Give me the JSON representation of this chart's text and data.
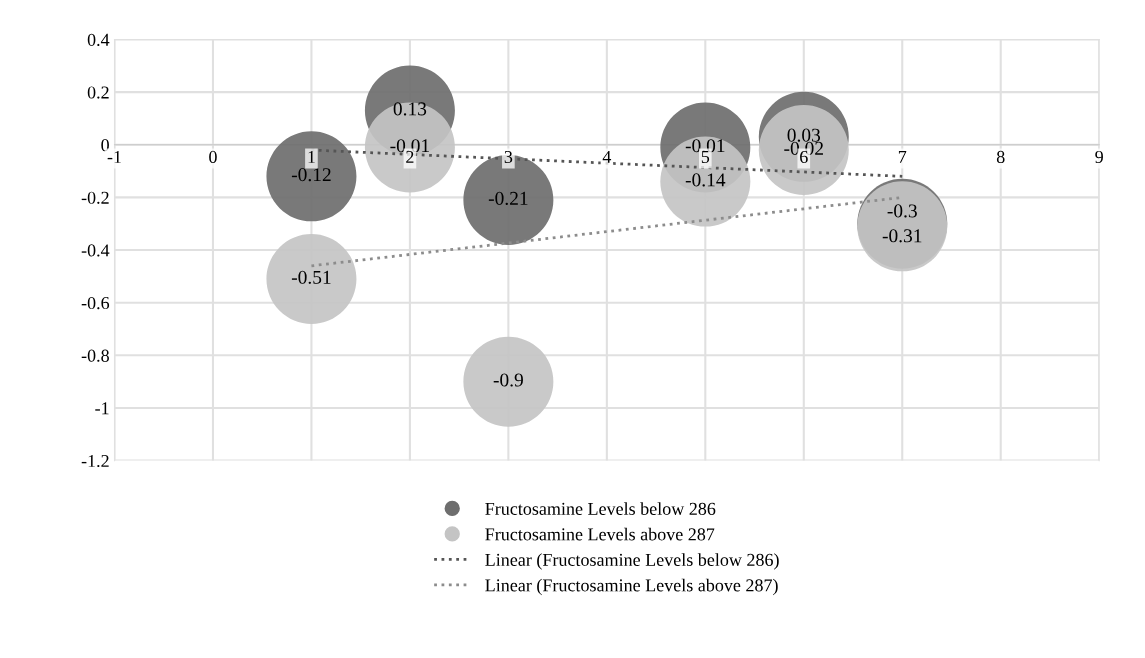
{
  "chart_data": {
    "type": "bubble",
    "xlim": [
      -1,
      9
    ],
    "xticks": [
      -1,
      0,
      1,
      2,
      3,
      4,
      5,
      6,
      7,
      8,
      9
    ],
    "ylim": [
      -1.2,
      0.4
    ],
    "yticks": [
      {
        "value": -1.2,
        "label": "-1.2"
      },
      {
        "value": -1,
        "label": "-1"
      },
      {
        "value": -0.8,
        "label": "-0.8"
      },
      {
        "value": -0.6,
        "label": "-0.6"
      },
      {
        "value": -0.4,
        "label": "-0.4"
      },
      {
        "value": -0.2,
        "label": "-0.2"
      },
      {
        "value": 0,
        "label": "0"
      },
      {
        "value": 0.2,
        "label": "0.2"
      },
      {
        "value": 0.4,
        "label": "0.4"
      }
    ],
    "grid": true,
    "legend": "bottom",
    "series": [
      {
        "name": "Fructosamine Levels below 286",
        "color": "#6e6e6e",
        "x": [
          1,
          2,
          3,
          5,
          6,
          7
        ],
        "values": [
          -0.12,
          0.13,
          -0.21,
          -0.01,
          0.03,
          -0.3
        ],
        "value_labels": [
          "-0.12",
          "0.13",
          "-0.21",
          "-0.01",
          "0.03",
          "-0.3"
        ],
        "sizes": [
          1,
          1,
          1,
          1,
          1,
          1
        ]
      },
      {
        "name": "Fructosamine Levels above 287",
        "color": "#c4c4c4",
        "x": [
          1,
          2,
          3,
          5,
          6,
          7
        ],
        "values": [
          -0.51,
          -0.01,
          -0.9,
          -0.14,
          -0.02,
          -0.31
        ],
        "value_labels": [
          "-0.51",
          "-0.01",
          "-0.9",
          "-0.14",
          "-0.02",
          "-0.31"
        ],
        "sizes": [
          1,
          1,
          1,
          1,
          1,
          1
        ]
      },
      {
        "name": "Linear (Fructosamine Levels below 286)",
        "type": "line",
        "color": "#555555",
        "line_style": "dotted",
        "x": [
          1,
          7
        ],
        "values": [
          -0.02,
          -0.12
        ]
      },
      {
        "name": "Linear (Fructosamine Levels above 287)",
        "type": "line",
        "color": "#8c8c8c",
        "line_style": "dotted",
        "x": [
          1,
          7
        ],
        "values": [
          -0.46,
          -0.2
        ]
      }
    ]
  }
}
